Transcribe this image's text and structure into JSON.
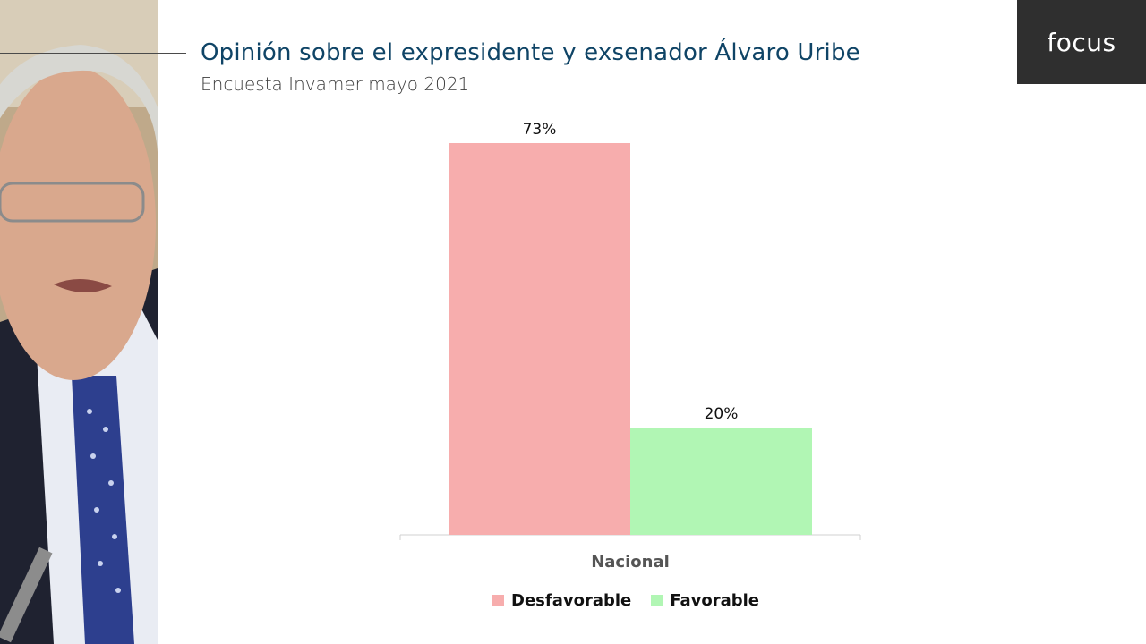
{
  "header": {
    "title": "Opinión sobre el expresidente y exsenador Álvaro Uribe",
    "subtitle": "Encuesta Invamer mayo 2021"
  },
  "logo": {
    "text": "focus"
  },
  "chart_data": {
    "type": "bar",
    "categories": [
      "Nacional"
    ],
    "series": [
      {
        "name": "Desfavorable",
        "values": [
          73
        ],
        "label": "73%",
        "color": "#f7adad"
      },
      {
        "name": "Favorable",
        "values": [
          20
        ],
        "label": "20%",
        "color": "#b1f6b4"
      }
    ],
    "ylim": [
      0,
      100
    ],
    "grid": false,
    "legend_position": "bottom"
  }
}
